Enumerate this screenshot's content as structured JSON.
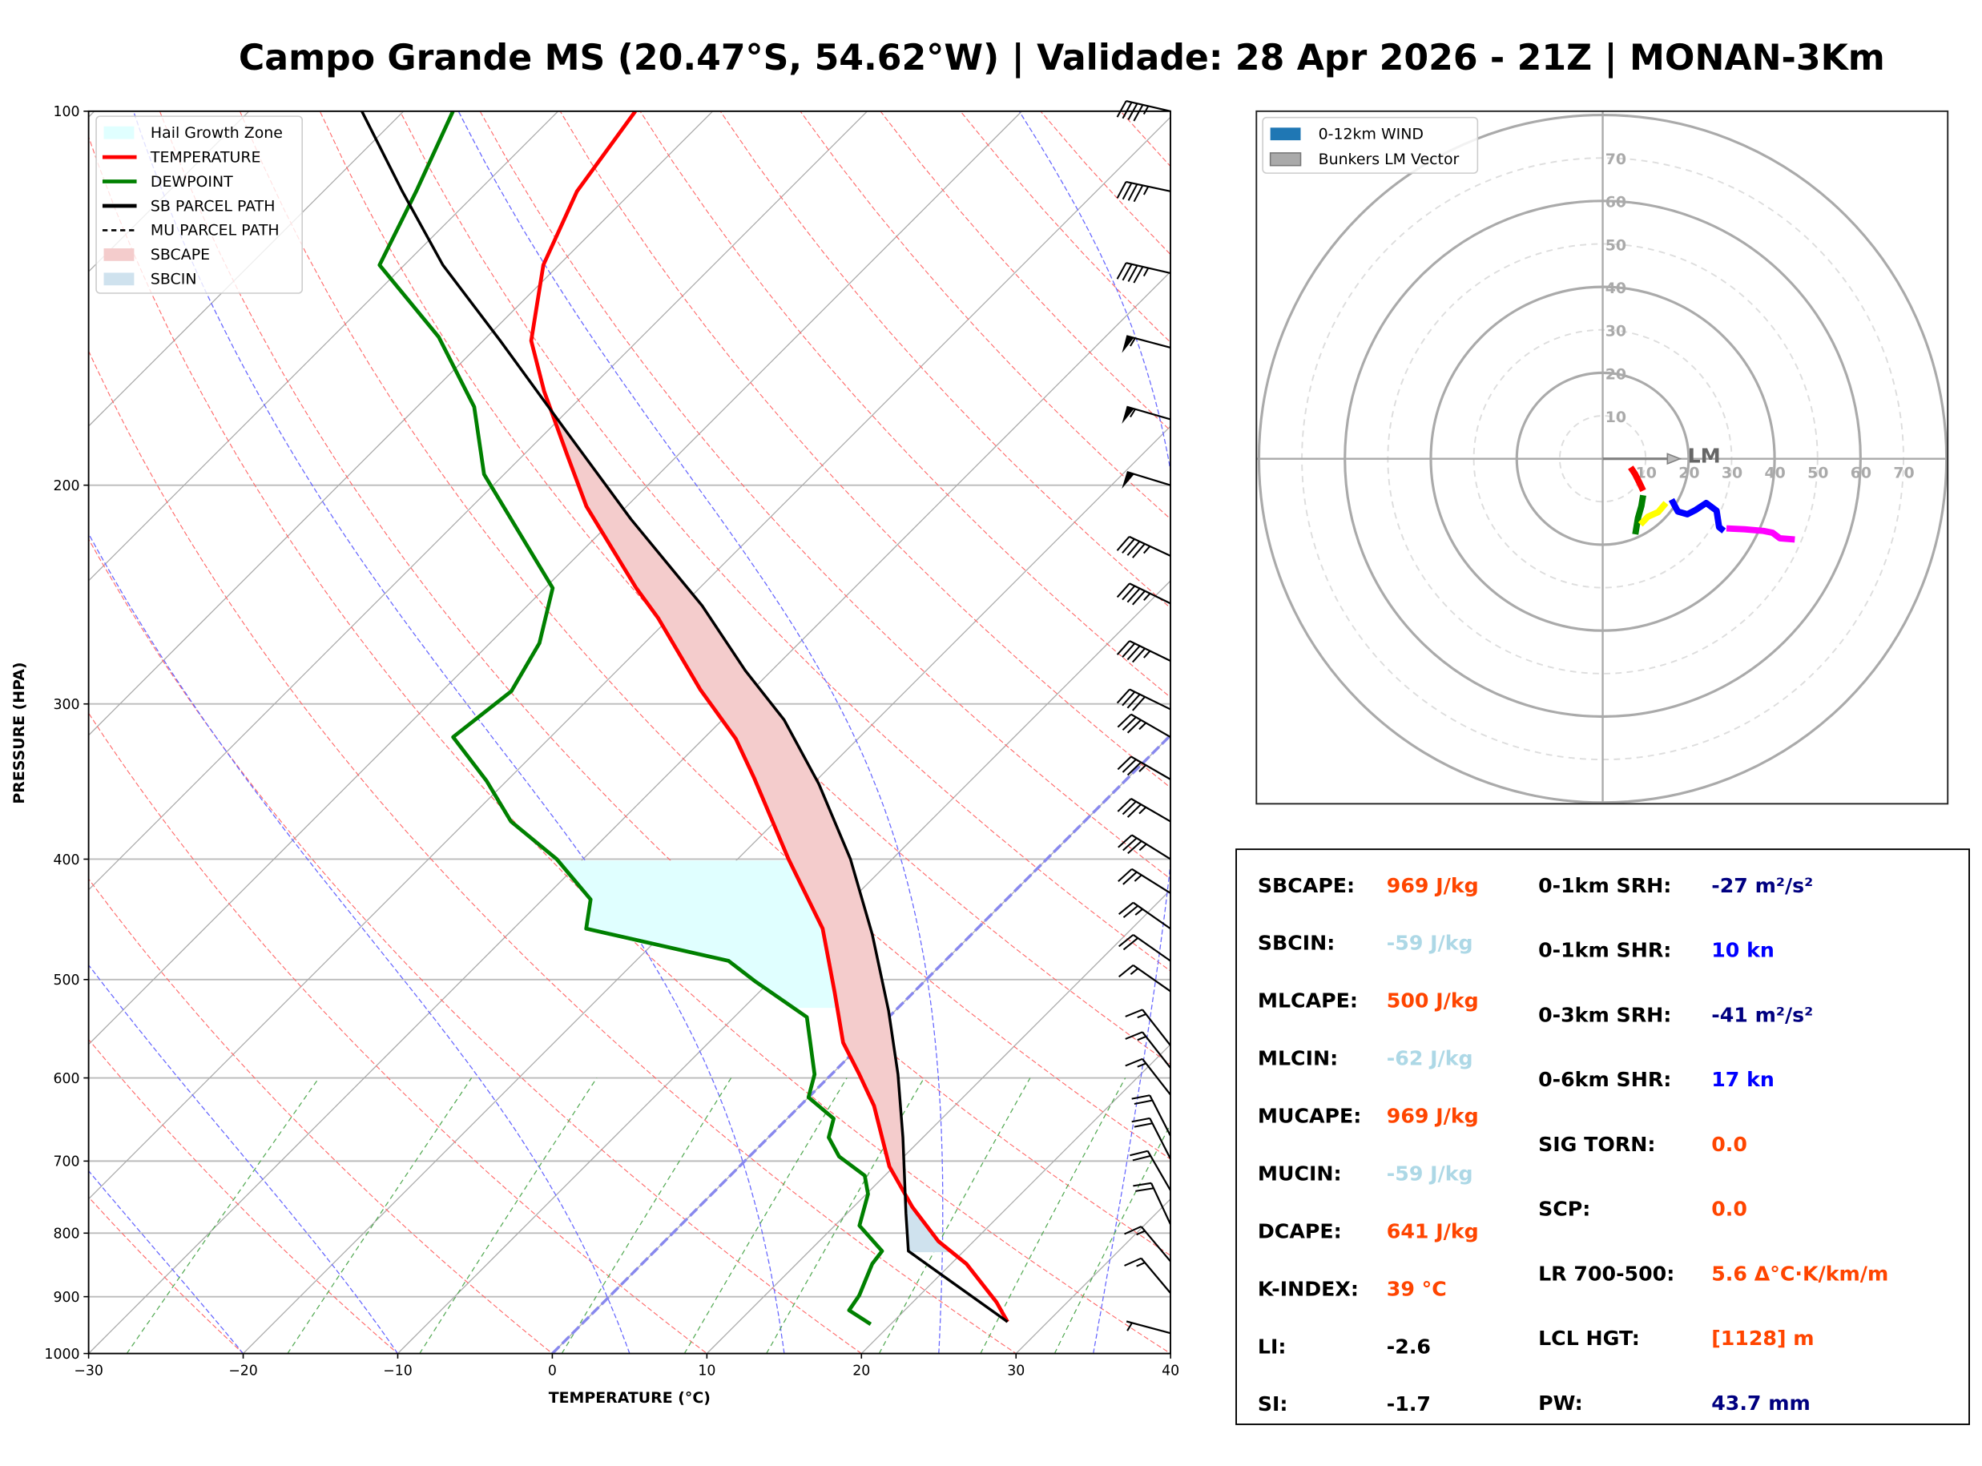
{
  "title": "Campo Grande MS (20.47°S, 54.62°W) | Validade: 28 Apr 2026 - 21Z | MONAN-3Km",
  "legend": {
    "items": [
      {
        "label": "Hail Growth Zone",
        "color": "#e0ffff",
        "kind": "patch"
      },
      {
        "label": "TEMPERATURE",
        "color": "#ff0000",
        "kind": "line"
      },
      {
        "label": "DEWPOINT",
        "color": "#008000",
        "kind": "line"
      },
      {
        "label": "SB PARCEL PATH",
        "color": "#000000",
        "kind": "line"
      },
      {
        "label": "MU PARCEL PATH",
        "color": "#000000",
        "kind": "dashed"
      },
      {
        "label": "SBCAPE",
        "color": "#f4cccc",
        "kind": "patch"
      },
      {
        "label": "SBCIN",
        "color": "#cfe2ee",
        "kind": "patch"
      }
    ]
  },
  "chart_data": [
    {
      "type": "line",
      "subtype": "skew-t log-p",
      "xlabel": "TEMPERATURE (°C)",
      "ylabel": "PRESSURE (HPA)",
      "xlim": [
        -30,
        40
      ],
      "ylim": [
        1000,
        100
      ],
      "y_scale": "log",
      "x_ticks": [
        "−30",
        "−20",
        "−10",
        "0",
        "10",
        "20",
        "30",
        "40"
      ],
      "x_tick_values": [
        -30,
        -20,
        -10,
        0,
        10,
        20,
        30,
        40
      ],
      "y_ticks": [
        "100",
        "200",
        "300",
        "400",
        "500",
        "600",
        "700",
        "800",
        "900",
        "1000"
      ],
      "y_tick_values": [
        100,
        200,
        300,
        400,
        500,
        600,
        700,
        800,
        900,
        1000
      ],
      "grid": true,
      "legend_position": "top-left",
      "series": [
        {
          "name": "TEMPERATURE",
          "color": "#ff0000",
          "points": [
            [
              943,
              27.4
            ],
            [
              909,
              25.4
            ],
            [
              847,
              21.0
            ],
            [
              812,
              17.7
            ],
            [
              762,
              13.8
            ],
            [
              707,
              9.7
            ],
            [
              632,
              4.8
            ],
            [
              596,
              1.8
            ],
            [
              562,
              -1.3
            ],
            [
              512,
              -5.1
            ],
            [
              455,
              -10.0
            ],
            [
              400,
              -16.7
            ],
            [
              344,
              -24.2
            ],
            [
              320,
              -27.9
            ],
            [
              292,
              -33.4
            ],
            [
              256,
              -40.7
            ],
            [
              242,
              -44.1
            ],
            [
              208,
              -52.6
            ],
            [
              189,
              -57.2
            ],
            [
              168,
              -62.8
            ],
            [
              153,
              -66.9
            ],
            [
              133,
              -71.0
            ],
            [
              116,
              -73.6
            ],
            [
              100,
              -75.0
            ]
          ]
        },
        {
          "name": "DEWPOINT",
          "color": "#008000",
          "points": [
            [
              947,
              18.7
            ],
            [
              923,
              16.4
            ],
            [
              898,
              16.1
            ],
            [
              847,
              14.9
            ],
            [
              827,
              14.7
            ],
            [
              789,
              11.6
            ],
            [
              744,
              10.1
            ],
            [
              719,
              8.7
            ],
            [
              694,
              5.8
            ],
            [
              670,
              3.9
            ],
            [
              647,
              3.0
            ],
            [
              622,
              0.0
            ],
            [
              596,
              -1.1
            ],
            [
              536,
              -5.3
            ],
            [
              502,
              -10.9
            ],
            [
              483,
              -14.0
            ],
            [
              455,
              -25.3
            ],
            [
              431,
              -26.9
            ],
            [
              400,
              -31.7
            ],
            [
              373,
              -37.1
            ],
            [
              346,
              -41.3
            ],
            [
              319,
              -46.3
            ],
            [
              293,
              -45.5
            ],
            [
              268,
              -46.8
            ],
            [
              242,
              -49.5
            ],
            [
              196,
              -61.3
            ],
            [
              173,
              -66.3
            ],
            [
              152,
              -73.1
            ],
            [
              133,
              -81.6
            ],
            [
              116,
              -84.0
            ],
            [
              100,
              -86.8
            ]
          ]
        },
        {
          "name": "SB PARCEL PATH",
          "color": "#000000",
          "points": [
            [
              943,
              27.4
            ],
            [
              827,
              16.4
            ],
            [
              771,
              13.8
            ],
            [
              670,
              8.7
            ],
            [
              596,
              4.3
            ],
            [
              530,
              -0.4
            ],
            [
              460,
              -6.4
            ],
            [
              400,
              -12.7
            ],
            [
              348,
              -19.6
            ],
            [
              309,
              -26.0
            ],
            [
              282,
              -31.7
            ],
            [
              250,
              -38.7
            ],
            [
              213,
              -48.9
            ],
            [
              180,
              -59.1
            ],
            [
              153,
              -68.9
            ],
            [
              133,
              -77.5
            ],
            [
              116,
              -84.9
            ],
            [
              100,
              -92.7
            ]
          ]
        }
      ],
      "hail_growth_zone_hpa": [
        400,
        527
      ],
      "wind_barbs": [
        {
          "p": 100,
          "dir": 283,
          "kt": 45
        },
        {
          "p": 116,
          "dir": 282,
          "kt": 45
        },
        {
          "p": 135,
          "dir": 283,
          "kt": 45
        },
        {
          "p": 155,
          "dir": 285,
          "kt": 55
        },
        {
          "p": 177,
          "dir": 286,
          "kt": 55
        },
        {
          "p": 200,
          "dir": 287,
          "kt": 50
        },
        {
          "p": 228,
          "dir": 295,
          "kt": 45
        },
        {
          "p": 249,
          "dir": 296,
          "kt": 45
        },
        {
          "p": 277,
          "dir": 296,
          "kt": 45
        },
        {
          "p": 303,
          "dir": 296,
          "kt": 40
        },
        {
          "p": 319,
          "dir": 300,
          "kt": 35
        },
        {
          "p": 345,
          "dir": 300,
          "kt": 35
        },
        {
          "p": 373,
          "dir": 300,
          "kt": 35
        },
        {
          "p": 400,
          "dir": 302,
          "kt": 35
        },
        {
          "p": 426,
          "dir": 302,
          "kt": 25
        },
        {
          "p": 455,
          "dir": 305,
          "kt": 25
        },
        {
          "p": 483,
          "dir": 305,
          "kt": 20
        },
        {
          "p": 511,
          "dir": 305,
          "kt": 15
        },
        {
          "p": 565,
          "dir": 322,
          "kt": 15
        },
        {
          "p": 589,
          "dir": 322,
          "kt": 15
        },
        {
          "p": 619,
          "dir": 322,
          "kt": 15
        },
        {
          "p": 668,
          "dir": 333,
          "kt": 20
        },
        {
          "p": 697,
          "dir": 333,
          "kt": 20
        },
        {
          "p": 739,
          "dir": 330,
          "kt": 20
        },
        {
          "p": 787,
          "dir": 335,
          "kt": 20
        },
        {
          "p": 843,
          "dir": 320,
          "kt": 15
        },
        {
          "p": 894,
          "dir": 320,
          "kt": 15
        },
        {
          "p": 963,
          "dir": 285,
          "kt": 5
        }
      ],
      "background_colors": {
        "isotherm": "#aaaaaa",
        "dry_adiabat": "#ff6666",
        "moist_adiabat": "#6666ff",
        "mixing_ratio": "#55aa55",
        "freezing_isotherm": "#8888ee"
      }
    },
    {
      "type": "line",
      "subtype": "hodograph",
      "units": "kt",
      "ring_labels": [
        "10",
        "20",
        "30",
        "40",
        "50",
        "60",
        "70"
      ],
      "ring_values": [
        10,
        20,
        30,
        40,
        50,
        60,
        70,
        80
      ],
      "legend_position": "top-left",
      "legend": [
        {
          "label": "0-12km WIND",
          "color": "#1f77b4"
        },
        {
          "label": "Bunkers LM Vector",
          "color": "#aaaaaa"
        }
      ],
      "segments": [
        {
          "color": "#ff0000",
          "points": [
            [
              6.5,
              -2
            ],
            [
              7.5,
              -3.5
            ],
            [
              8.5,
              -5.5
            ],
            [
              9.4,
              -7.4
            ]
          ]
        },
        {
          "color": "#008000",
          "points": [
            [
              9.4,
              -8.5
            ],
            [
              9.0,
              -11
            ],
            [
              8.2,
              -13.8
            ],
            [
              7.6,
              -17.6
            ]
          ]
        },
        {
          "color": "#ffff00",
          "points": [
            [
              8.8,
              -15.3
            ],
            [
              10.5,
              -13.5
            ],
            [
              12.9,
              -12.4
            ],
            [
              14.7,
              -10.3
            ]
          ]
        },
        {
          "color": "#0000ff",
          "points": [
            [
              16.0,
              -9.5
            ],
            [
              17.5,
              -12.3
            ],
            [
              19.7,
              -12.9
            ],
            [
              21.5,
              -12.0
            ],
            [
              24.1,
              -10.3
            ],
            [
              26.5,
              -12.1
            ],
            [
              27.1,
              -15.9
            ],
            [
              28.2,
              -16.8
            ]
          ]
        },
        {
          "color": "#ff00ff",
          "points": [
            [
              28.8,
              -16.2
            ],
            [
              33.0,
              -16.4
            ],
            [
              37.4,
              -16.8
            ],
            [
              39.5,
              -17.2
            ],
            [
              41.2,
              -18.5
            ],
            [
              44.7,
              -18.8
            ]
          ]
        }
      ],
      "lm_vector": {
        "label": "LM",
        "u": 18,
        "v": 0,
        "color": "#808080"
      }
    }
  ],
  "stats": {
    "left": [
      {
        "label": "SBCAPE:",
        "value": "969 J/kg",
        "color": "#ff4500"
      },
      {
        "label": "SBCIN:",
        "value": "-59 J/kg",
        "color": "#add8e6"
      },
      {
        "label": "MLCAPE:",
        "value": "500 J/kg",
        "color": "#ff4500"
      },
      {
        "label": "MLCIN:",
        "value": "-62 J/kg",
        "color": "#add8e6"
      },
      {
        "label": "MUCAPE:",
        "value": "969 J/kg",
        "color": "#ff4500"
      },
      {
        "label": "MUCIN:",
        "value": "-59 J/kg",
        "color": "#add8e6"
      },
      {
        "label": "DCAPE:",
        "value": "641 J/kg",
        "color": "#ff4500"
      },
      {
        "label": "K-INDEX:",
        "value": "39 °C",
        "color": "#ff4500"
      },
      {
        "label": "LI:",
        "value": "-2.6",
        "color": "#000000"
      },
      {
        "label": "SI:",
        "value": "-1.7",
        "color": "#000000"
      }
    ],
    "right": [
      {
        "label": "0-1km SRH:",
        "value": "-27 m²/s²",
        "color": "#000080"
      },
      {
        "label": "0-1km SHR:",
        "value": "10 kn",
        "color": "#0000ff"
      },
      {
        "label": "0-3km SRH:",
        "value": "-41 m²/s²",
        "color": "#000080"
      },
      {
        "label": "0-6km SHR:",
        "value": "17 kn",
        "color": "#0000ff"
      },
      {
        "label": "SIG TORN:",
        "value": "0.0",
        "color": "#ff4500"
      },
      {
        "label": "SCP:",
        "value": "0.0",
        "color": "#ff4500"
      },
      {
        "label": "LR 700-500:",
        "value": "5.6 Δ°C·K/km/m",
        "color": "#ff4500"
      },
      {
        "label": "LCL HGT:",
        "value": "[1128] m",
        "color": "#ff4500"
      },
      {
        "label": "PW:",
        "value": "43.7 mm",
        "color": "#000080"
      }
    ]
  }
}
